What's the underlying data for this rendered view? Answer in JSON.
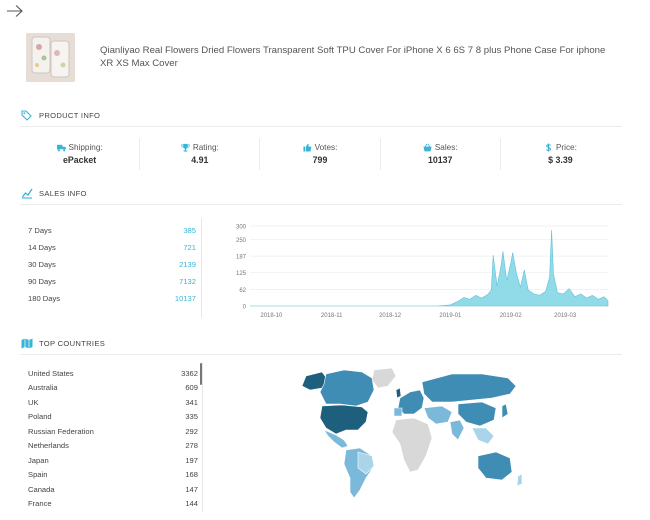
{
  "product": {
    "title": "Qianliyao Real Flowers Dried Flowers Transparent Soft TPU Cover For iPhone X 6 6S 7 8 plus Phone Case For iphone XR XS Max Cover"
  },
  "sections": {
    "product_info": "PRODUCT INFO",
    "sales_info": "SALES INFO",
    "top_countries": "TOP COUNTRIES"
  },
  "stats": [
    {
      "label": "Shipping:",
      "value": "ePacket",
      "icon": "truck-icon"
    },
    {
      "label": "Rating:",
      "value": "4.91",
      "icon": "trophy-icon"
    },
    {
      "label": "Votes:",
      "value": "799",
      "icon": "thumbs-up-icon"
    },
    {
      "label": "Sales:",
      "value": "10137",
      "icon": "basket-icon"
    },
    {
      "label": "Price:",
      "value": "$ 3.39",
      "icon": "dollar-icon"
    }
  ],
  "sales": [
    {
      "period": "7 Days",
      "count": "385"
    },
    {
      "period": "14 Days",
      "count": "721"
    },
    {
      "period": "30 Days",
      "count": "2139"
    },
    {
      "period": "90 Days",
      "count": "7132"
    },
    {
      "period": "180 Days",
      "count": "10137"
    }
  ],
  "chart_data": {
    "type": "area",
    "title": "",
    "xlabel": "",
    "ylabel": "",
    "x_ticks": [
      "2018-10",
      "2018-11",
      "2018-12",
      "2019-01",
      "2019-02",
      "2019-03"
    ],
    "y_ticks": [
      "0",
      "62",
      "125",
      "187",
      "250",
      "300"
    ],
    "ylim": [
      0,
      300
    ],
    "x_range": [
      "2018-09-20",
      "2019-03-23"
    ],
    "grid": true,
    "color": "#7ed3e4",
    "series": [
      {
        "values": [
          [
            "2018-09-20",
            0
          ],
          [
            "2018-12-25",
            0
          ],
          [
            "2019-01-01",
            4
          ],
          [
            "2019-01-05",
            18
          ],
          [
            "2019-01-08",
            32
          ],
          [
            "2019-01-11",
            25
          ],
          [
            "2019-01-14",
            40
          ],
          [
            "2019-01-17",
            30
          ],
          [
            "2019-01-20",
            42
          ],
          [
            "2019-01-22",
            60
          ],
          [
            "2019-01-23",
            190
          ],
          [
            "2019-01-25",
            75
          ],
          [
            "2019-01-27",
            150
          ],
          [
            "2019-01-28",
            205
          ],
          [
            "2019-01-30",
            95
          ],
          [
            "2019-02-01",
            160
          ],
          [
            "2019-02-02",
            200
          ],
          [
            "2019-02-04",
            120
          ],
          [
            "2019-02-06",
            70
          ],
          [
            "2019-02-08",
            135
          ],
          [
            "2019-02-10",
            60
          ],
          [
            "2019-02-13",
            45
          ],
          [
            "2019-02-16",
            40
          ],
          [
            "2019-02-19",
            55
          ],
          [
            "2019-02-21",
            110
          ],
          [
            "2019-02-22",
            285
          ],
          [
            "2019-02-23",
            120
          ],
          [
            "2019-02-25",
            50
          ],
          [
            "2019-02-28",
            45
          ],
          [
            "2019-03-03",
            65
          ],
          [
            "2019-03-06",
            35
          ],
          [
            "2019-03-09",
            45
          ],
          [
            "2019-03-12",
            30
          ],
          [
            "2019-03-15",
            40
          ],
          [
            "2019-03-18",
            25
          ],
          [
            "2019-03-21",
            35
          ],
          [
            "2019-03-23",
            20
          ]
        ]
      }
    ]
  },
  "countries": [
    {
      "name": "United States",
      "count": "3362"
    },
    {
      "name": "Australia",
      "count": "609"
    },
    {
      "name": "UK",
      "count": "341"
    },
    {
      "name": "Poland",
      "count": "335"
    },
    {
      "name": "Russian Federation",
      "count": "292"
    },
    {
      "name": "Netherlands",
      "count": "278"
    },
    {
      "name": "Japan",
      "count": "197"
    },
    {
      "name": "Spain",
      "count": "168"
    },
    {
      "name": "Canada",
      "count": "147"
    },
    {
      "name": "France",
      "count": "144"
    }
  ],
  "map_colors": {
    "strong": "#1e5f7e",
    "medium": "#3f8db4",
    "light": "#7bb9da",
    "pale": "#a9d4ea",
    "none": "#d8d8d8"
  }
}
